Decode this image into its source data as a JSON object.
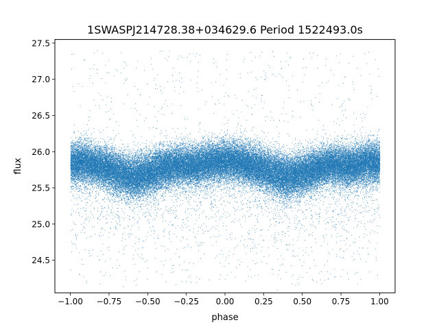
{
  "chart_data": {
    "type": "scatter",
    "title": "1SWASPJ214728.38+034629.6 Period 1522493.0s",
    "xlabel": "phase",
    "ylabel": "flux",
    "xlim": [
      -1.1,
      1.1
    ],
    "ylim": [
      24.05,
      27.55
    ],
    "xticks": [
      -1.0,
      -0.75,
      -0.5,
      -0.25,
      0.0,
      0.25,
      0.5,
      0.75,
      1.0
    ],
    "xtick_labels": [
      "−1.00",
      "−0.75",
      "−0.50",
      "−0.25",
      "0.00",
      "0.25",
      "0.50",
      "0.75",
      "1.00"
    ],
    "yticks": [
      24.5,
      25.0,
      25.5,
      26.0,
      26.5,
      27.0,
      27.5
    ],
    "ytick_labels": [
      "24.5",
      "25.0",
      "25.5",
      "26.0",
      "26.5",
      "27.0",
      "27.5"
    ],
    "grid": false,
    "marker_color": "#1f77b4",
    "phase_range": [
      -1.0,
      1.0
    ],
    "approx_point_count": 60000,
    "profile": {
      "description_of_values": "phase-folded light curve; band of points whose central flux varies with phase",
      "phase": [
        -1.0,
        -0.9,
        -0.8,
        -0.7,
        -0.6,
        -0.5,
        -0.4,
        -0.3,
        -0.2,
        -0.1,
        0.0,
        0.1,
        0.2,
        0.3,
        0.4,
        0.5,
        0.6,
        0.7,
        0.8,
        0.9,
        1.0
      ],
      "median_flux": [
        25.85,
        25.85,
        25.8,
        25.72,
        25.65,
        25.7,
        25.78,
        25.82,
        25.8,
        25.85,
        25.88,
        25.85,
        25.8,
        25.72,
        25.65,
        25.7,
        25.78,
        25.82,
        25.8,
        25.85,
        25.85
      ],
      "band_half_width": [
        0.25,
        0.25,
        0.25,
        0.27,
        0.28,
        0.27,
        0.25,
        0.25,
        0.25,
        0.25,
        0.25,
        0.25,
        0.25,
        0.27,
        0.28,
        0.27,
        0.25,
        0.25,
        0.25,
        0.25,
        0.25
      ]
    },
    "outlier_range": [
      24.15,
      27.4
    ]
  }
}
